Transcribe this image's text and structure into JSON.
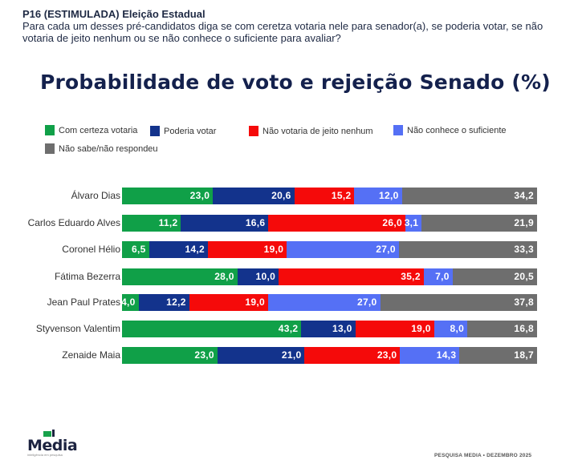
{
  "header": {
    "question_code": "P16 (ESTIMULADA) Eleição Estadual",
    "question_text": "Para cada um desses pré-candidatos diga se com ceretza votaria nele para senador(a), se poderia votar, se não votaria de jeito nenhum ou se não conhece o suficiente para avaliar?"
  },
  "chart_data": {
    "type": "bar",
    "orientation": "horizontal",
    "stacked": true,
    "title": "Probabilidade de voto e rejeição Senado (%)",
    "xlabel": "",
    "ylabel": "",
    "legend_position": "top-left",
    "grid": false,
    "categories": [
      "Álvaro Dias",
      "Carlos Eduardo Alves",
      "Coronel Hélio",
      "Fátima Bezerra",
      "Jean Paul Prates",
      "Styvenson Valentim",
      "Zenaide Maia"
    ],
    "series": [
      {
        "name": "Com certeza votaria",
        "color": "#10a048",
        "values": [
          23.0,
          11.2,
          6.5,
          28.0,
          4.0,
          43.2,
          23.0
        ],
        "labels": [
          "23,0",
          "11,2",
          "6,5",
          "28,0",
          "4,0",
          "43,2",
          "23,0"
        ]
      },
      {
        "name": "Poderia votar",
        "color": "#13338c",
        "values": [
          20.6,
          16.6,
          14.2,
          10.0,
          12.2,
          13.0,
          21.0
        ],
        "labels": [
          "20,6",
          "16,6",
          "14,2",
          "10,0",
          "12,2",
          "13,0",
          "21,0"
        ]
      },
      {
        "name": "Não votaria de jeito nenhum",
        "color": "#f50a0a",
        "values": [
          15.2,
          26.0,
          19.0,
          35.2,
          19.0,
          19.0,
          23.0
        ],
        "labels": [
          "15,2",
          "26,0",
          "19,0",
          "35,2",
          "19,0",
          "19,0",
          "23,0"
        ]
      },
      {
        "name": "Não conhece o suficiente",
        "color": "#5570f5",
        "values": [
          12.0,
          3.1,
          27.0,
          7.0,
          27.0,
          8.0,
          14.3
        ],
        "labels": [
          "12,0",
          "3,1",
          "27,0",
          "7,0",
          "27,0",
          "8,0",
          "14,3"
        ]
      },
      {
        "name": "Não sabe/não respondeu",
        "color": "#6e6e6e",
        "values": [
          34.2,
          21.9,
          33.3,
          20.5,
          37.8,
          16.8,
          18.7
        ],
        "labels": [
          "34,2",
          "21,9",
          "33,3",
          "20,5",
          "37,8",
          "16,8",
          "18,7"
        ]
      }
    ]
  },
  "footer": {
    "logo_text": "Media",
    "logo_tagline": "inteligência em pesquisa",
    "note": "PESQUISA MEDIA • DEZEMBRO 2025"
  }
}
